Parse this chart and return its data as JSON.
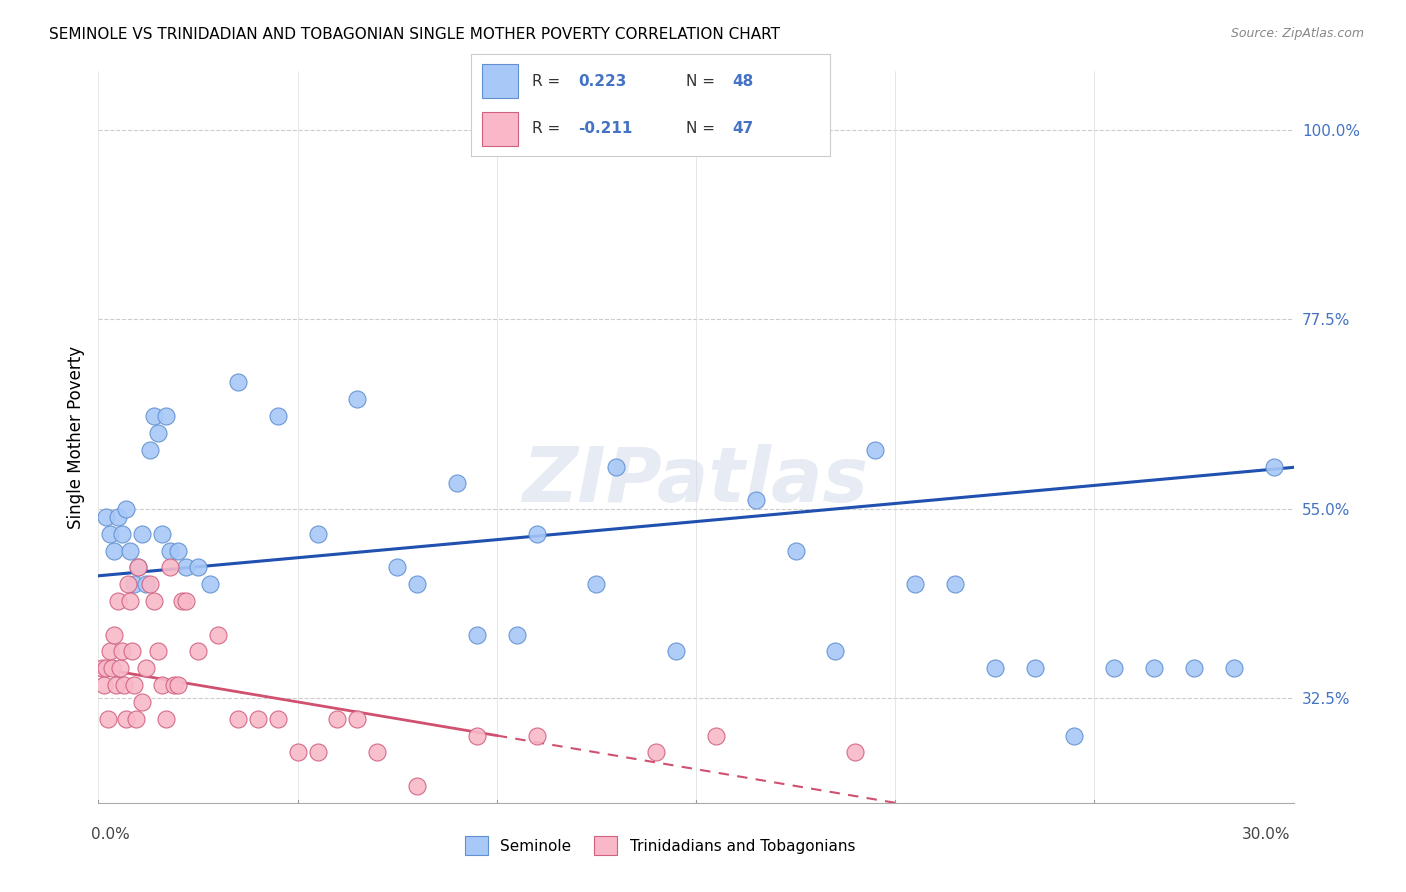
{
  "title": "SEMINOLE VS TRINIDADIAN AND TOBAGONIAN SINGLE MOTHER POVERTY CORRELATION CHART",
  "source": "Source: ZipAtlas.com",
  "ylabel": "Single Mother Poverty",
  "yticks": [
    32.5,
    55.0,
    77.5,
    100.0
  ],
  "ytick_labels": [
    "32.5%",
    "55.0%",
    "77.5%",
    "100.0%"
  ],
  "xmin": 0.0,
  "xmax": 30.0,
  "ymin": 20.0,
  "ymax": 107.0,
  "seminole_color": "#a8c8f8",
  "seminole_edge_color": "#6090d0",
  "trinidadian_color": "#f8b8c8",
  "trinidadian_edge_color": "#d06080",
  "trend_seminole_color": "#2050b0",
  "trend_trinidadian_color": "#d05070",
  "legend_text_color": "#4472C4",
  "watermark": "ZIPatlas",
  "legend_label1": "Seminole",
  "legend_label2": "Trinidadians and Tobagonians",
  "sem_x": [
    0.2,
    0.3,
    0.4,
    0.5,
    0.6,
    0.7,
    0.8,
    0.9,
    1.0,
    1.1,
    1.2,
    1.3,
    1.4,
    1.5,
    1.6,
    1.7,
    1.8,
    2.0,
    2.2,
    2.5,
    2.8,
    3.5,
    4.5,
    5.5,
    6.5,
    7.5,
    8.0,
    9.0,
    9.5,
    10.5,
    11.0,
    12.5,
    13.0,
    14.5,
    16.5,
    17.5,
    18.5,
    19.5,
    20.5,
    21.5,
    22.5,
    23.5,
    24.5,
    25.5,
    26.5,
    27.5,
    28.5,
    29.5
  ],
  "sem_y": [
    54.0,
    52.0,
    50.0,
    54.0,
    52.0,
    55.0,
    50.0,
    46.0,
    48.0,
    52.0,
    46.0,
    62.0,
    66.0,
    64.0,
    52.0,
    66.0,
    50.0,
    50.0,
    48.0,
    48.0,
    46.0,
    70.0,
    66.0,
    52.0,
    68.0,
    48.0,
    46.0,
    58.0,
    40.0,
    40.0,
    52.0,
    46.0,
    60.0,
    38.0,
    56.0,
    50.0,
    38.0,
    62.0,
    46.0,
    46.0,
    36.0,
    36.0,
    28.0,
    36.0,
    36.0,
    36.0,
    36.0,
    60.0
  ],
  "tri_x": [
    0.1,
    0.15,
    0.2,
    0.25,
    0.3,
    0.35,
    0.4,
    0.45,
    0.5,
    0.55,
    0.6,
    0.65,
    0.7,
    0.75,
    0.8,
    0.85,
    0.9,
    0.95,
    1.0,
    1.1,
    1.2,
    1.3,
    1.4,
    1.5,
    1.6,
    1.7,
    1.8,
    1.9,
    2.0,
    2.1,
    2.2,
    2.5,
    3.0,
    3.5,
    4.0,
    4.5,
    5.0,
    5.5,
    6.0,
    6.5,
    7.0,
    8.0,
    9.5,
    11.0,
    14.0,
    15.5,
    19.0
  ],
  "tri_y": [
    36.0,
    34.0,
    36.0,
    30.0,
    38.0,
    36.0,
    40.0,
    34.0,
    44.0,
    36.0,
    38.0,
    34.0,
    30.0,
    46.0,
    44.0,
    38.0,
    34.0,
    30.0,
    48.0,
    32.0,
    36.0,
    46.0,
    44.0,
    38.0,
    34.0,
    30.0,
    48.0,
    34.0,
    34.0,
    44.0,
    44.0,
    38.0,
    40.0,
    30.0,
    30.0,
    30.0,
    26.0,
    26.0,
    30.0,
    30.0,
    26.0,
    22.0,
    28.0,
    28.0,
    26.0,
    28.0,
    26.0
  ]
}
